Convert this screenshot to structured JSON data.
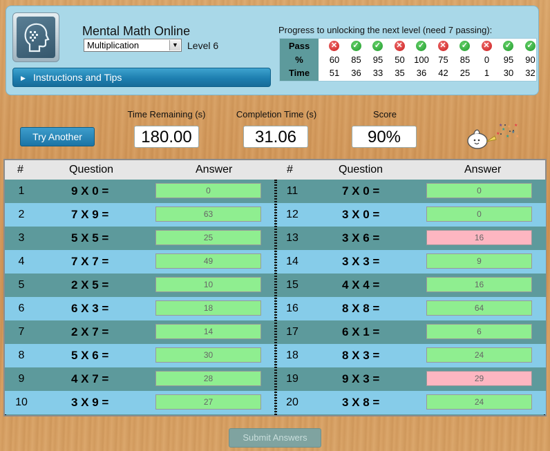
{
  "header": {
    "app_title": "Mental Math Online",
    "operation_selected": "Multiplication",
    "level_label": "Level 6",
    "instructions_label": "Instructions and Tips"
  },
  "progress": {
    "title": "Progress to unlocking the next level (need 7 passing):",
    "row_labels": {
      "pass": "Pass",
      "percent": "%",
      "time": "Time"
    },
    "attempts": [
      {
        "pass": false,
        "percent": "60",
        "time": "51"
      },
      {
        "pass": true,
        "percent": "85",
        "time": "36"
      },
      {
        "pass": true,
        "percent": "95",
        "time": "33"
      },
      {
        "pass": false,
        "percent": "50",
        "time": "35"
      },
      {
        "pass": true,
        "percent": "100",
        "time": "36"
      },
      {
        "pass": false,
        "percent": "75",
        "time": "42"
      },
      {
        "pass": true,
        "percent": "85",
        "time": "25"
      },
      {
        "pass": false,
        "percent": "0",
        "time": "1"
      },
      {
        "pass": true,
        "percent": "95",
        "time": "30"
      },
      {
        "pass": true,
        "percent": "90",
        "time": "32"
      }
    ]
  },
  "controls": {
    "try_another_label": "Try Another",
    "time_remaining_label": "Time Remaining (s)",
    "time_remaining_value": "180.00",
    "completion_time_label": "Completion Time (s)",
    "completion_time_value": "31.06",
    "score_label": "Score",
    "score_value": "90%",
    "submit_label": "Submit Answers"
  },
  "table": {
    "headers": {
      "num": "#",
      "question": "Question",
      "answer": "Answer"
    },
    "rows": [
      {
        "num": "1",
        "question": "9 X 0 =",
        "answer": "0",
        "correct": true
      },
      {
        "num": "2",
        "question": "7 X 9 =",
        "answer": "63",
        "correct": true
      },
      {
        "num": "3",
        "question": "5 X 5 =",
        "answer": "25",
        "correct": true
      },
      {
        "num": "4",
        "question": "7 X 7 =",
        "answer": "49",
        "correct": true
      },
      {
        "num": "5",
        "question": "2 X 5 =",
        "answer": "10",
        "correct": true
      },
      {
        "num": "6",
        "question": "6 X 3 =",
        "answer": "18",
        "correct": true
      },
      {
        "num": "7",
        "question": "2 X 7 =",
        "answer": "14",
        "correct": true
      },
      {
        "num": "8",
        "question": "5 X 6 =",
        "answer": "30",
        "correct": true
      },
      {
        "num": "9",
        "question": "4 X 7 =",
        "answer": "28",
        "correct": true
      },
      {
        "num": "10",
        "question": "3 X 9 =",
        "answer": "27",
        "correct": true
      },
      {
        "num": "11",
        "question": "7 X 0 =",
        "answer": "0",
        "correct": true
      },
      {
        "num": "12",
        "question": "3 X 0 =",
        "answer": "0",
        "correct": true
      },
      {
        "num": "13",
        "question": "3 X 6 =",
        "answer": "16",
        "correct": false
      },
      {
        "num": "14",
        "question": "3 X 3 =",
        "answer": "9",
        "correct": true
      },
      {
        "num": "15",
        "question": "4 X 4 =",
        "answer": "16",
        "correct": true
      },
      {
        "num": "16",
        "question": "8 X 8 =",
        "answer": "64",
        "correct": true
      },
      {
        "num": "17",
        "question": "6 X 1 =",
        "answer": "6",
        "correct": true
      },
      {
        "num": "18",
        "question": "8 X 3 =",
        "answer": "24",
        "correct": true
      },
      {
        "num": "19",
        "question": "9 X 3 =",
        "answer": "29",
        "correct": false
      },
      {
        "num": "20",
        "question": "3 X 8 =",
        "answer": "24",
        "correct": true
      }
    ]
  },
  "icons": {
    "logo": "head-profile-logo",
    "pass": "check-icon",
    "fail": "x-icon",
    "celebrate": "party-popper-icon"
  },
  "colors": {
    "pass_green": "#1f9a2b",
    "fail_red": "#c91b1b",
    "correct_answer_bg": "#8fee90",
    "wrong_answer_bg": "#fdb6c1",
    "row_dark": "#5d9a9c",
    "row_light": "#86cce9"
  }
}
